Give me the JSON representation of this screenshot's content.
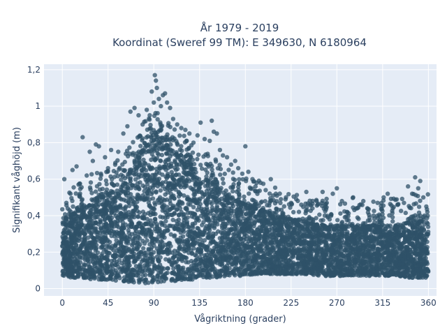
{
  "chart_data": {
    "type": "scatter",
    "title_line1": "År 1979 - 2019",
    "title_line2": "Koordinat (Sweref 99 TM): E 349630, N 6180964",
    "xlabel": "Vågriktning (grader)",
    "ylabel": "Signifikant våghöjd (m)",
    "xlim": [
      -18,
      368
    ],
    "ylim": [
      -0.04,
      1.23
    ],
    "x_ticks": [
      0,
      45,
      90,
      135,
      180,
      225,
      270,
      315,
      360
    ],
    "x_tick_labels": [
      "0",
      "45",
      "90",
      "135",
      "180",
      "225",
      "270",
      "315",
      "360"
    ],
    "y_ticks": [
      0,
      0.2,
      0.4,
      0.6,
      0.8,
      1,
      1.2
    ],
    "y_tick_labels": [
      "0",
      "0,2",
      "0,4",
      "0,6",
      "0,8",
      "1",
      "1,2"
    ],
    "grid": true,
    "marker_color": "#2f5168",
    "plot_bg": "#e5ecf6",
    "envelope": {
      "x": [
        0,
        10,
        20,
        30,
        40,
        50,
        60,
        70,
        80,
        90,
        100,
        110,
        120,
        130,
        140,
        150,
        160,
        170,
        180,
        190,
        200,
        210,
        220,
        230,
        240,
        250,
        260,
        270,
        280,
        290,
        300,
        310,
        320,
        330,
        340,
        350,
        360
      ],
      "y_low": [
        0.07,
        0.06,
        0.06,
        0.05,
        0.05,
        0.04,
        0.04,
        0.03,
        0.03,
        0.03,
        0.04,
        0.04,
        0.05,
        0.05,
        0.06,
        0.06,
        0.06,
        0.07,
        0.07,
        0.08,
        0.08,
        0.08,
        0.08,
        0.08,
        0.08,
        0.07,
        0.07,
        0.07,
        0.07,
        0.07,
        0.07,
        0.07,
        0.07,
        0.07,
        0.06,
        0.06,
        0.06
      ],
      "y_high": [
        0.36,
        0.4,
        0.45,
        0.48,
        0.5,
        0.53,
        0.58,
        0.66,
        0.76,
        0.82,
        0.8,
        0.74,
        0.68,
        0.64,
        0.6,
        0.56,
        0.52,
        0.48,
        0.46,
        0.44,
        0.42,
        0.4,
        0.38,
        0.37,
        0.36,
        0.35,
        0.34,
        0.34,
        0.34,
        0.34,
        0.34,
        0.34,
        0.34,
        0.35,
        0.36,
        0.37,
        0.36
      ]
    },
    "outliers": [
      {
        "x": 2,
        "y": 0.6
      },
      {
        "x": 4,
        "y": 0.47
      },
      {
        "x": 8,
        "y": 0.52
      },
      {
        "x": 10,
        "y": 0.65
      },
      {
        "x": 14,
        "y": 0.67
      },
      {
        "x": 16,
        "y": 0.57
      },
      {
        "x": 20,
        "y": 0.83
      },
      {
        "x": 24,
        "y": 0.62
      },
      {
        "x": 27,
        "y": 0.75
      },
      {
        "x": 30,
        "y": 0.7
      },
      {
        "x": 33,
        "y": 0.79
      },
      {
        "x": 36,
        "y": 0.78
      },
      {
        "x": 38,
        "y": 0.63
      },
      {
        "x": 42,
        "y": 0.72
      },
      {
        "x": 45,
        "y": 0.66
      },
      {
        "x": 48,
        "y": 0.76
      },
      {
        "x": 52,
        "y": 0.68
      },
      {
        "x": 55,
        "y": 0.75
      },
      {
        "x": 60,
        "y": 0.85
      },
      {
        "x": 64,
        "y": 0.89
      },
      {
        "x": 67,
        "y": 0.97
      },
      {
        "x": 71,
        "y": 0.99
      },
      {
        "x": 75,
        "y": 0.95
      },
      {
        "x": 79,
        "y": 0.9
      },
      {
        "x": 83,
        "y": 0.98
      },
      {
        "x": 86,
        "y": 0.95
      },
      {
        "x": 88,
        "y": 1.08
      },
      {
        "x": 90,
        "y": 1.02
      },
      {
        "x": 91,
        "y": 1.17
      },
      {
        "x": 92,
        "y": 1.14
      },
      {
        "x": 93,
        "y": 1.1
      },
      {
        "x": 95,
        "y": 1.04
      },
      {
        "x": 97,
        "y": 1.0
      },
      {
        "x": 99,
        "y": 1.06
      },
      {
        "x": 101,
        "y": 1.07
      },
      {
        "x": 103,
        "y": 1.02
      },
      {
        "x": 106,
        "y": 0.99
      },
      {
        "x": 109,
        "y": 0.93
      },
      {
        "x": 113,
        "y": 0.9
      },
      {
        "x": 117,
        "y": 0.88
      },
      {
        "x": 121,
        "y": 0.87
      },
      {
        "x": 125,
        "y": 0.85
      },
      {
        "x": 129,
        "y": 0.8
      },
      {
        "x": 133,
        "y": 0.84
      },
      {
        "x": 136,
        "y": 0.91
      },
      {
        "x": 140,
        "y": 0.82
      },
      {
        "x": 145,
        "y": 0.81
      },
      {
        "x": 147,
        "y": 0.92
      },
      {
        "x": 149,
        "y": 0.86
      },
      {
        "x": 152,
        "y": 0.85
      },
      {
        "x": 155,
        "y": 0.76
      },
      {
        "x": 158,
        "y": 0.73
      },
      {
        "x": 162,
        "y": 0.72
      },
      {
        "x": 166,
        "y": 0.68
      },
      {
        "x": 170,
        "y": 0.7
      },
      {
        "x": 173,
        "y": 0.66
      },
      {
        "x": 177,
        "y": 0.63
      },
      {
        "x": 180,
        "y": 0.78
      },
      {
        "x": 183,
        "y": 0.64
      },
      {
        "x": 187,
        "y": 0.6
      },
      {
        "x": 190,
        "y": 0.56
      },
      {
        "x": 195,
        "y": 0.58
      },
      {
        "x": 200,
        "y": 0.54
      },
      {
        "x": 205,
        "y": 0.6
      },
      {
        "x": 210,
        "y": 0.52
      },
      {
        "x": 215,
        "y": 0.49
      },
      {
        "x": 220,
        "y": 0.5
      },
      {
        "x": 225,
        "y": 0.47
      },
      {
        "x": 230,
        "y": 0.49
      },
      {
        "x": 235,
        "y": 0.46
      },
      {
        "x": 240,
        "y": 0.53
      },
      {
        "x": 246,
        "y": 0.44
      },
      {
        "x": 250,
        "y": 0.48
      },
      {
        "x": 256,
        "y": 0.53
      },
      {
        "x": 260,
        "y": 0.47
      },
      {
        "x": 266,
        "y": 0.52
      },
      {
        "x": 270,
        "y": 0.55
      },
      {
        "x": 275,
        "y": 0.48
      },
      {
        "x": 280,
        "y": 0.42
      },
      {
        "x": 286,
        "y": 0.5
      },
      {
        "x": 290,
        "y": 0.44
      },
      {
        "x": 296,
        "y": 0.48
      },
      {
        "x": 300,
        "y": 0.44
      },
      {
        "x": 306,
        "y": 0.4
      },
      {
        "x": 310,
        "y": 0.47
      },
      {
        "x": 316,
        "y": 0.5
      },
      {
        "x": 320,
        "y": 0.52
      },
      {
        "x": 325,
        "y": 0.44
      },
      {
        "x": 330,
        "y": 0.46
      },
      {
        "x": 336,
        "y": 0.47
      },
      {
        "x": 340,
        "y": 0.56
      },
      {
        "x": 344,
        "y": 0.52
      },
      {
        "x": 347,
        "y": 0.61
      },
      {
        "x": 350,
        "y": 0.55
      },
      {
        "x": 352,
        "y": 0.59
      },
      {
        "x": 355,
        "y": 0.5
      },
      {
        "x": 358,
        "y": 0.45
      },
      {
        "x": 359,
        "y": 0.42
      }
    ]
  }
}
